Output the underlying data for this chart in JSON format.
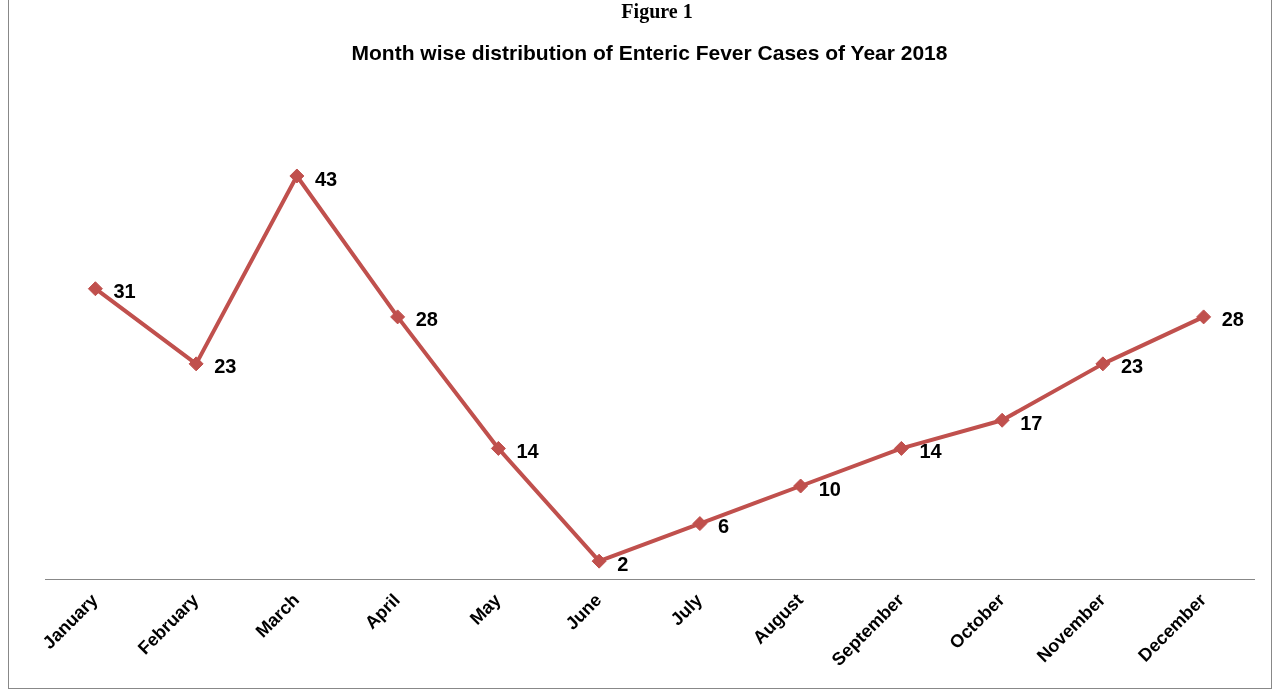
{
  "chart_data": {
    "type": "line",
    "title": "Month wise distribution of Enteric Fever Cases of Year 2018",
    "annotations": [
      "Figure 1"
    ],
    "categories": [
      "January",
      "February",
      "March",
      "April",
      "May",
      "June",
      "July",
      "August",
      "September",
      "October",
      "November",
      "December"
    ],
    "series": [
      {
        "color": "#c0504d",
        "values": [
          31,
          23,
          43,
          28,
          14,
          2,
          6,
          10,
          14,
          17,
          23,
          28
        ]
      }
    ],
    "tick_labels": "x",
    "data_labels": true,
    "marker": "diamond",
    "line_style": "solid",
    "grid": false,
    "legend": false
  }
}
